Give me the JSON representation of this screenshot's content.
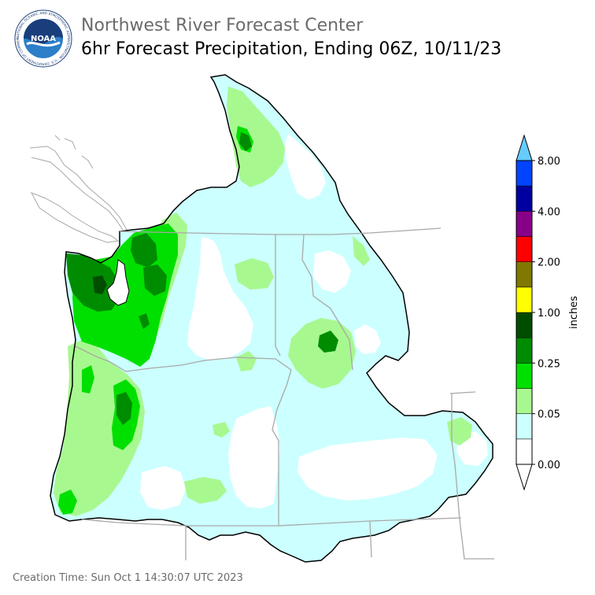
{
  "header": {
    "title_line1": "Northwest River Forecast Center",
    "title_line2": "6hr Forecast Precipitation, Ending 06Z, 10/11/23"
  },
  "logo": {
    "text": "NOAA",
    "ring_text": "NATIONAL OCEANIC AND ATMOSPHERIC ADMINISTRATION · U.S. DEPARTMENT OF COMMERCE"
  },
  "footer": {
    "creation_time": "Creation Time: Sun Oct 1 14:30:07 UTC 2023"
  },
  "legend": {
    "units_label": "inches",
    "bins": [
      {
        "color": "#ffffff"
      },
      {
        "color": "#ccffff"
      },
      {
        "color": "#a8f890"
      },
      {
        "color": "#00e000"
      },
      {
        "color": "#008c00"
      },
      {
        "color": "#004d00"
      },
      {
        "color": "#ffff00"
      },
      {
        "color": "#807800"
      },
      {
        "color": "#ff0000"
      },
      {
        "color": "#880088"
      },
      {
        "color": "#0000a0"
      },
      {
        "color": "#0044ff"
      }
    ],
    "over_color": "#66ccff",
    "tick_labels": [
      "0.00",
      "0.05",
      "0.25",
      "1.00",
      "2.00",
      "4.00",
      "8.00"
    ]
  },
  "map_colors": {
    "ocean": "#ffffff",
    "trace": "#ccffff",
    "light": "#a8f890",
    "medium": "#00e000",
    "heavy": "#008c00",
    "very_heavy": "#004d00",
    "basin_outline": "#000000",
    "state_lines": "#a8a8a8"
  }
}
